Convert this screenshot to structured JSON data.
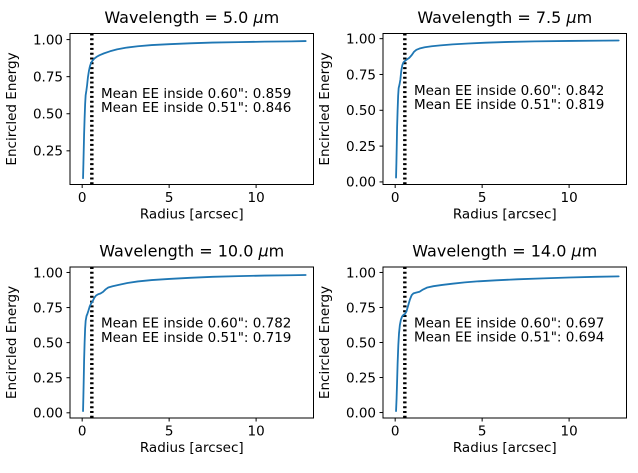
{
  "figure": {
    "background": "#ffffff",
    "line_color": "#1f77b4",
    "vline_color": "#000000",
    "axis_color": "#000000",
    "xlabel": "Radius [arcsec]",
    "ylabel": "Encircled Energy",
    "x_tick_labels": [
      "0",
      "5",
      "10"
    ],
    "x_ticks": [
      0,
      5,
      10
    ],
    "xlim": [
      -0.7,
      13.3
    ],
    "vline_radii": [
      0.51,
      0.6
    ]
  },
  "chart_data": [
    {
      "type": "line",
      "title": "Wavelength = 5.0 μm",
      "wavelength_um": 5.0,
      "xlabel": "Radius [arcsec]",
      "ylabel": "Encircled Energy",
      "annotations": [
        "Mean EE inside 0.60\": 0.859",
        "Mean EE inside 0.51\": 0.846"
      ],
      "mean_ee_inside_060": 0.859,
      "mean_ee_inside_051": 0.846,
      "y_ticks": [
        0.25,
        0.5,
        0.75,
        1.0
      ],
      "y_tick_labels": [
        "0.25",
        "0.50",
        "0.75",
        "1.00"
      ],
      "ylim": [
        0.023,
        1.041
      ],
      "points": [
        [
          0.05,
          0.065
        ],
        [
          0.07,
          0.16
        ],
        [
          0.09,
          0.26
        ],
        [
          0.11,
          0.36
        ],
        [
          0.14,
          0.47
        ],
        [
          0.17,
          0.565
        ],
        [
          0.2,
          0.625
        ],
        [
          0.24,
          0.655
        ],
        [
          0.28,
          0.69
        ],
        [
          0.33,
          0.745
        ],
        [
          0.39,
          0.79
        ],
        [
          0.45,
          0.822
        ],
        [
          0.51,
          0.843
        ],
        [
          0.6,
          0.859
        ],
        [
          0.7,
          0.872
        ],
        [
          0.85,
          0.885
        ],
        [
          1.0,
          0.895
        ],
        [
          1.25,
          0.907
        ],
        [
          1.6,
          0.921
        ],
        [
          2.0,
          0.934
        ],
        [
          2.5,
          0.945
        ],
        [
          3.2,
          0.955
        ],
        [
          4.0,
          0.963
        ],
        [
          5.0,
          0.969
        ],
        [
          6.2,
          0.975
        ],
        [
          7.5,
          0.98
        ],
        [
          9.0,
          0.983
        ],
        [
          10.5,
          0.986
        ],
        [
          12.0,
          0.988
        ],
        [
          12.85,
          0.99
        ]
      ]
    },
    {
      "type": "line",
      "title": "Wavelength = 7.5 μm",
      "wavelength_um": 7.5,
      "xlabel": "Radius [arcsec]",
      "ylabel": "Encircled Energy",
      "annotations": [
        "Mean EE inside 0.60\": 0.842",
        "Mean EE inside 0.51\": 0.819"
      ],
      "mean_ee_inside_060": 0.842,
      "mean_ee_inside_051": 0.819,
      "y_ticks": [
        0.0,
        0.25,
        0.5,
        0.75,
        1.0
      ],
      "y_tick_labels": [
        "0.00",
        "0.25",
        "0.50",
        "0.75",
        "1.00"
      ],
      "ylim": [
        -0.018,
        1.036
      ],
      "points": [
        [
          0.05,
          0.03
        ],
        [
          0.07,
          0.13
        ],
        [
          0.09,
          0.25
        ],
        [
          0.11,
          0.38
        ],
        [
          0.14,
          0.5
        ],
        [
          0.17,
          0.6
        ],
        [
          0.2,
          0.655
        ],
        [
          0.25,
          0.68
        ],
        [
          0.3,
          0.715
        ],
        [
          0.35,
          0.775
        ],
        [
          0.41,
          0.815
        ],
        [
          0.47,
          0.833
        ],
        [
          0.51,
          0.839
        ],
        [
          0.6,
          0.848
        ],
        [
          0.7,
          0.857
        ],
        [
          0.82,
          0.867
        ],
        [
          0.95,
          0.885
        ],
        [
          1.08,
          0.908
        ],
        [
          1.22,
          0.922
        ],
        [
          1.4,
          0.931
        ],
        [
          1.7,
          0.94
        ],
        [
          2.1,
          0.947
        ],
        [
          2.6,
          0.953
        ],
        [
          3.3,
          0.96
        ],
        [
          4.2,
          0.966
        ],
        [
          5.2,
          0.972
        ],
        [
          6.5,
          0.977
        ],
        [
          8.0,
          0.981
        ],
        [
          10.0,
          0.984
        ],
        [
          12.0,
          0.986
        ],
        [
          12.85,
          0.987
        ]
      ]
    },
    {
      "type": "line",
      "title": "Wavelength = 10.0 μm",
      "wavelength_um": 10.0,
      "xlabel": "Radius [arcsec]",
      "ylabel": "Encircled Energy",
      "annotations": [
        "Mean EE inside 0.60\": 0.782",
        "Mean EE inside 0.51\": 0.719"
      ],
      "mean_ee_inside_060": 0.782,
      "mean_ee_inside_051": 0.719,
      "y_ticks": [
        0.0,
        0.25,
        0.5,
        0.75,
        1.0
      ],
      "y_tick_labels": [
        "0.00",
        "0.25",
        "0.50",
        "0.75",
        "1.00"
      ],
      "ylim": [
        -0.037,
        1.039
      ],
      "points": [
        [
          0.05,
          0.012
        ],
        [
          0.07,
          0.12
        ],
        [
          0.09,
          0.24
        ],
        [
          0.11,
          0.37
        ],
        [
          0.14,
          0.5
        ],
        [
          0.17,
          0.6
        ],
        [
          0.2,
          0.655
        ],
        [
          0.25,
          0.69
        ],
        [
          0.3,
          0.705
        ],
        [
          0.36,
          0.728
        ],
        [
          0.43,
          0.757
        ],
        [
          0.51,
          0.778
        ],
        [
          0.6,
          0.795
        ],
        [
          0.7,
          0.82
        ],
        [
          0.8,
          0.836
        ],
        [
          0.92,
          0.845
        ],
        [
          1.05,
          0.85
        ],
        [
          1.2,
          0.862
        ],
        [
          1.35,
          0.88
        ],
        [
          1.5,
          0.893
        ],
        [
          1.75,
          0.902
        ],
        [
          2.1,
          0.912
        ],
        [
          2.6,
          0.925
        ],
        [
          3.2,
          0.936
        ],
        [
          4.0,
          0.946
        ],
        [
          5.0,
          0.954
        ],
        [
          6.2,
          0.962
        ],
        [
          7.5,
          0.969
        ],
        [
          9.0,
          0.974
        ],
        [
          10.5,
          0.978
        ],
        [
          12.0,
          0.98
        ],
        [
          12.85,
          0.982
        ]
      ]
    },
    {
      "type": "line",
      "title": "Wavelength = 14.0 μm",
      "wavelength_um": 14.0,
      "xlabel": "Radius [arcsec]",
      "ylabel": "Encircled Energy",
      "annotations": [
        "Mean EE inside 0.60\": 0.697",
        "Mean EE inside 0.51\": 0.694"
      ],
      "mean_ee_inside_060": 0.697,
      "mean_ee_inside_051": 0.694,
      "y_ticks": [
        0.0,
        0.25,
        0.5,
        0.75,
        1.0
      ],
      "y_tick_labels": [
        "0.00",
        "0.25",
        "0.50",
        "0.75",
        "1.00"
      ],
      "ylim": [
        -0.039,
        1.039
      ],
      "points": [
        [
          0.05,
          0.01
        ],
        [
          0.08,
          0.1
        ],
        [
          0.11,
          0.22
        ],
        [
          0.14,
          0.35
        ],
        [
          0.18,
          0.48
        ],
        [
          0.22,
          0.565
        ],
        [
          0.27,
          0.625
        ],
        [
          0.33,
          0.663
        ],
        [
          0.4,
          0.686
        ],
        [
          0.48,
          0.698
        ],
        [
          0.56,
          0.703
        ],
        [
          0.65,
          0.722
        ],
        [
          0.75,
          0.765
        ],
        [
          0.85,
          0.808
        ],
        [
          0.95,
          0.838
        ],
        [
          1.05,
          0.851
        ],
        [
          1.2,
          0.856
        ],
        [
          1.4,
          0.862
        ],
        [
          1.6,
          0.878
        ],
        [
          1.85,
          0.893
        ],
        [
          2.2,
          0.902
        ],
        [
          2.7,
          0.911
        ],
        [
          3.3,
          0.92
        ],
        [
          4.0,
          0.929
        ],
        [
          4.8,
          0.937
        ],
        [
          5.8,
          0.944
        ],
        [
          7.0,
          0.951
        ],
        [
          8.5,
          0.958
        ],
        [
          10.0,
          0.964
        ],
        [
          11.5,
          0.969
        ],
        [
          12.85,
          0.972
        ]
      ]
    }
  ]
}
